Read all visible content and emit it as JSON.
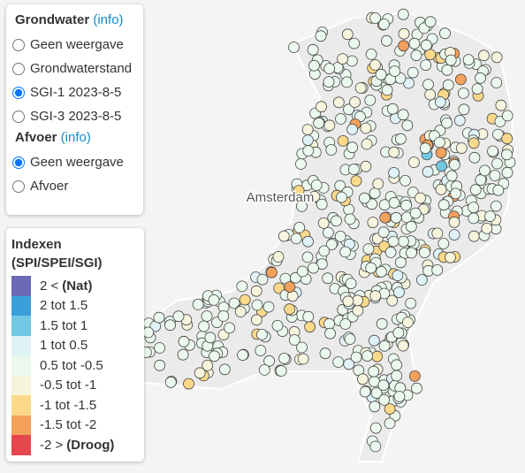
{
  "grondwater": {
    "title": "Grondwater",
    "info": "(info)",
    "options": [
      {
        "label": "Geen weergave",
        "checked": false
      },
      {
        "label": "Grondwaterstand",
        "checked": false
      },
      {
        "label": "SGI-1 2023-8-5",
        "checked": true
      },
      {
        "label": "SGI-3 2023-8-5",
        "checked": false
      }
    ]
  },
  "afvoer": {
    "title": "Afvoer",
    "info": "(info)",
    "options": [
      {
        "label": "Geen weergave",
        "checked": true
      },
      {
        "label": "Afvoer",
        "checked": false
      }
    ]
  },
  "legend": {
    "title": "Indexen",
    "subtitle": "(SPI/SPEI/SGI)",
    "items": [
      {
        "label": "2 <",
        "bold": "(Nat)",
        "color": "#6b69b6"
      },
      {
        "label": "2 tot 1.5",
        "color": "#3a9fd8"
      },
      {
        "label": "1.5 tot 1",
        "color": "#72c8e2"
      },
      {
        "label": "1 tot 0.5",
        "color": "#dff2f8"
      },
      {
        "label": "0.5 tot -0.5",
        "color": "#eaf8ee"
      },
      {
        "label": "-0.5 tot -1",
        "color": "#f6f4dc"
      },
      {
        "label": "-1 tot -1.5",
        "color": "#fcd98a"
      },
      {
        "label": "-1.5 tot -2",
        "color": "#f4a15b"
      },
      {
        "label": "-2 >",
        "bold": "(Droog)",
        "color": "#e8464f"
      }
    ]
  },
  "map": {
    "city": "Amsterdam"
  }
}
